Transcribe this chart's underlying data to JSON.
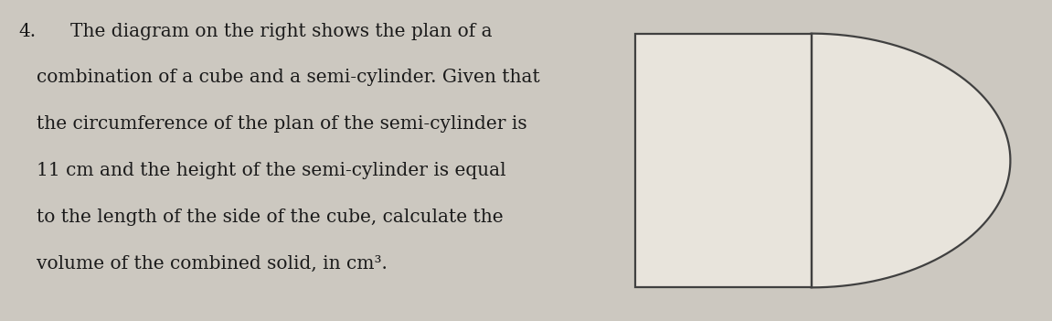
{
  "background_color": "#ccc8c0",
  "text_color": "#1a1a1a",
  "question_number": "4.",
  "question_lines": [
    "The diagram on the right shows the plan of a",
    "combination of a cube and a semi-cylinder. Given that",
    "the circumference of the plan of the semi-cylinder is",
    "11 cm and the height of the semi-cylinder is equal",
    "to the length of the side of the cube, calculate the",
    "volume of the combined solid, in cm³."
  ],
  "line_color": "#404040",
  "line_width": 1.6,
  "fill_color": "#e8e4dc",
  "font_size": 14.5,
  "font_family": "DejaVu Serif"
}
